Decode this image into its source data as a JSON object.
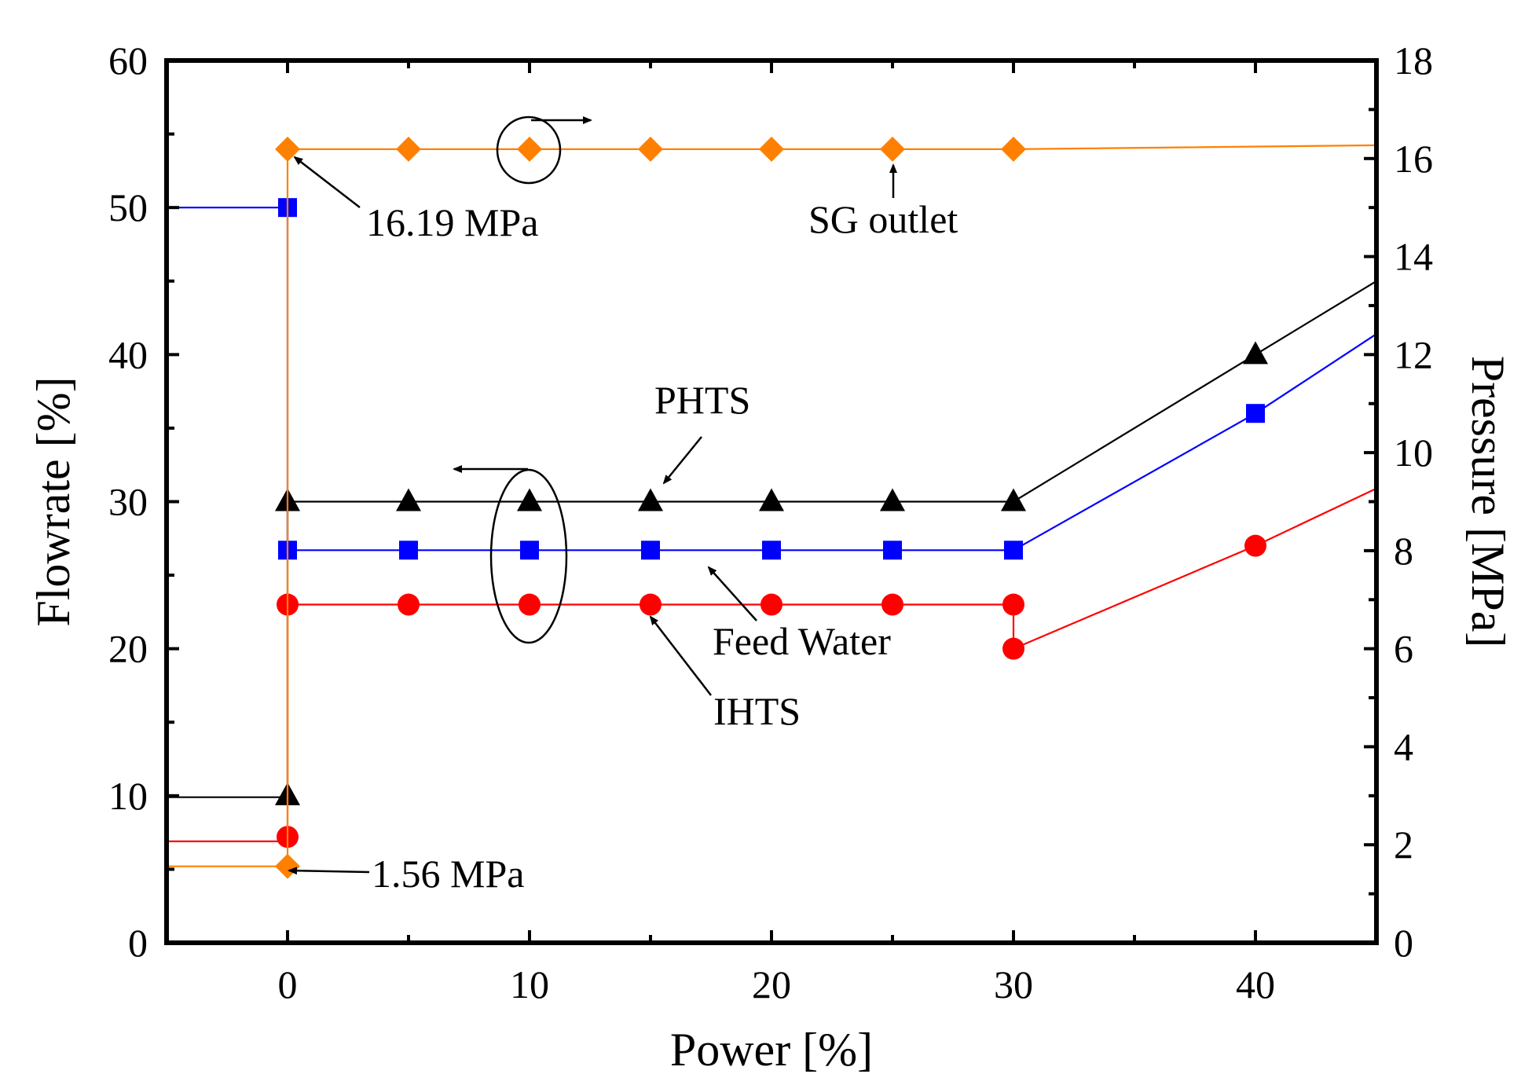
{
  "chart_data": {
    "type": "line",
    "xlabel": "Power [%]",
    "ylabel": "Flowrate [%]",
    "y2label": "Pressure [MPa]",
    "xlim": [
      -5,
      45
    ],
    "ylim": [
      0,
      60
    ],
    "y2lim": [
      0,
      18
    ],
    "xticks": [
      0,
      10,
      20,
      30,
      40
    ],
    "yticks": [
      0,
      10,
      20,
      30,
      40,
      50,
      60
    ],
    "y2ticks": [
      0,
      2,
      4,
      6,
      8,
      10,
      12,
      14,
      16,
      18
    ],
    "grid": false,
    "legend": "none",
    "series": [
      {
        "axis": "left",
        "color": "#000000",
        "marker": "triangle",
        "line": [
          [
            -5,
            9.9
          ],
          [
            0,
            9.9
          ],
          [
            0,
            30
          ],
          [
            5,
            30
          ],
          [
            10,
            30
          ],
          [
            15,
            30
          ],
          [
            20,
            30
          ],
          [
            25,
            30
          ],
          [
            30,
            30
          ],
          [
            40,
            40
          ],
          [
            45,
            45
          ]
        ],
        "points": [
          [
            0,
            10
          ],
          [
            0,
            30
          ],
          [
            5,
            30
          ],
          [
            10,
            30
          ],
          [
            15,
            30
          ],
          [
            20,
            30
          ],
          [
            25,
            30
          ],
          [
            30,
            30
          ],
          [
            40,
            40
          ]
        ]
      },
      {
        "axis": "left",
        "color": "#0000ff",
        "marker": "square",
        "line": [
          [
            -5,
            50
          ],
          [
            0,
            50
          ],
          [
            0,
            26.7
          ],
          [
            5,
            26.7
          ],
          [
            10,
            26.7
          ],
          [
            15,
            26.7
          ],
          [
            20,
            26.7
          ],
          [
            25,
            26.7
          ],
          [
            30,
            26.7
          ],
          [
            40,
            36
          ],
          [
            45,
            41.4
          ]
        ],
        "points": [
          [
            0,
            50
          ],
          [
            0,
            26.7
          ],
          [
            5,
            26.7
          ],
          [
            10,
            26.7
          ],
          [
            15,
            26.7
          ],
          [
            20,
            26.7
          ],
          [
            25,
            26.7
          ],
          [
            30,
            26.7
          ],
          [
            40,
            36
          ]
        ]
      },
      {
        "axis": "left",
        "color": "#ff0000",
        "marker": "circle",
        "line": [
          [
            -5,
            6.9
          ],
          [
            0,
            6.9
          ],
          [
            0,
            23
          ],
          [
            5,
            23
          ],
          [
            10,
            23
          ],
          [
            15,
            23
          ],
          [
            20,
            23
          ],
          [
            25,
            23
          ],
          [
            30,
            23
          ],
          [
            30,
            20
          ],
          [
            40,
            27
          ],
          [
            45,
            30.9
          ]
        ],
        "points": [
          [
            0,
            7.2
          ],
          [
            0,
            23
          ],
          [
            5,
            23
          ],
          [
            10,
            23
          ],
          [
            15,
            23
          ],
          [
            20,
            23
          ],
          [
            25,
            23
          ],
          [
            30,
            23
          ],
          [
            30,
            20
          ],
          [
            40,
            27
          ]
        ]
      },
      {
        "axis": "right",
        "color": "#ff8000",
        "marker": "diamond",
        "line": [
          [
            -5,
            1.56
          ],
          [
            0,
            1.56
          ],
          [
            0,
            16.19
          ],
          [
            5,
            16.19
          ],
          [
            10,
            16.19
          ],
          [
            15,
            16.19
          ],
          [
            20,
            16.19
          ],
          [
            25,
            16.19
          ],
          [
            30,
            16.19
          ],
          [
            45,
            16.27
          ]
        ],
        "points": [
          [
            0,
            1.56
          ],
          [
            0,
            16.19
          ],
          [
            5,
            16.19
          ],
          [
            10,
            16.19
          ],
          [
            15,
            16.19
          ],
          [
            20,
            16.19
          ],
          [
            25,
            16.19
          ],
          [
            30,
            16.19
          ]
        ]
      }
    ],
    "annotations": [
      {
        "text": "16.19 MPa",
        "target": [
          0,
          16.19
        ],
        "axis": "right"
      },
      {
        "text": "SG outlet",
        "target": [
          25,
          16.19
        ],
        "axis": "right"
      },
      {
        "text": "PHTS",
        "target": [
          15,
          30
        ],
        "axis": "left"
      },
      {
        "text": "Feed Water",
        "target": [
          17.5,
          26.7
        ],
        "axis": "left"
      },
      {
        "text": "IHTS",
        "target": [
          15,
          23
        ],
        "axis": "left"
      },
      {
        "text": "1.56 MPa",
        "target": [
          0,
          1.56
        ],
        "axis": "right"
      }
    ]
  }
}
